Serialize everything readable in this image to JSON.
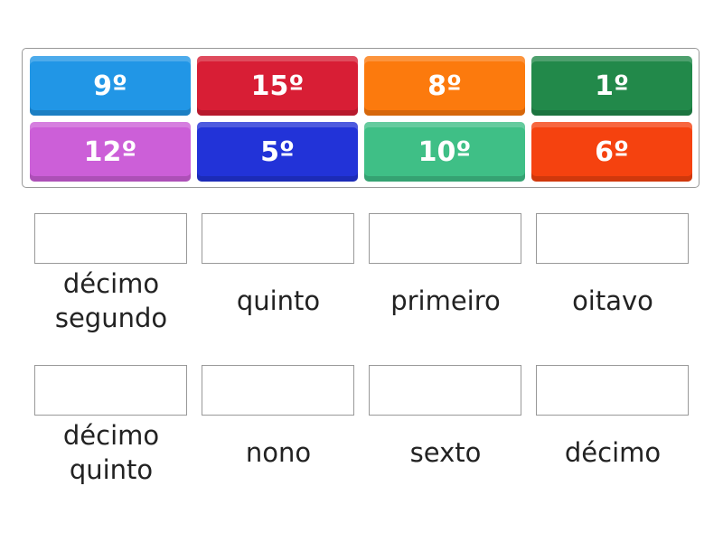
{
  "tiles": [
    {
      "label": "9º",
      "color": "#2196e6"
    },
    {
      "label": "15º",
      "color": "#d81e35"
    },
    {
      "label": "8º",
      "color": "#fc7a0d"
    },
    {
      "label": "1º",
      "color": "#22894a"
    },
    {
      "label": "12º",
      "color": "#cc5fd8"
    },
    {
      "label": "5º",
      "color": "#2233d8"
    },
    {
      "label": "10º",
      "color": "#3fbf86"
    },
    {
      "label": "6º",
      "color": "#f5420f"
    }
  ],
  "targets": [
    {
      "label": "décimo segundo"
    },
    {
      "label": "quinto"
    },
    {
      "label": "primeiro"
    },
    {
      "label": "oitavo"
    },
    {
      "label": "décimo quinto"
    },
    {
      "label": "nono"
    },
    {
      "label": "sexto"
    },
    {
      "label": "décimo"
    }
  ]
}
